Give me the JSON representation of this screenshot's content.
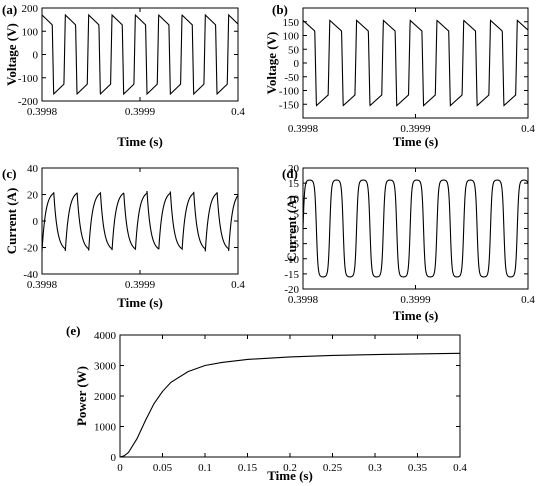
{
  "chart_data": [
    {
      "label": "(a)",
      "type": "line",
      "xlabel": "Time (s)",
      "ylabel": "Voltage (V)",
      "xlim": [
        0.3998,
        0.4
      ],
      "ylim": [
        -200,
        200
      ],
      "xticks": [
        0.3998,
        0.3999,
        0.4
      ],
      "xtick_labels": [
        "0.3998",
        "0.3999",
        "0.4"
      ],
      "yticks": [
        200,
        100,
        0,
        -100,
        -200
      ],
      "ytick_labels": [
        "200",
        "100",
        "0",
        "-100",
        "-200"
      ],
      "waveform": {
        "shape": "trapezoid-square",
        "amplitude": 170,
        "frequency_hz": 42000,
        "phase_start": "positive-falling"
      }
    },
    {
      "label": "(b)",
      "type": "line",
      "xlabel": "Time (s)",
      "ylabel": "Voltage (V)",
      "xlim": [
        0.3998,
        0.4
      ],
      "ylim": [
        -200,
        200
      ],
      "xticks": [
        0.3998,
        0.3999,
        0.4
      ],
      "xtick_labels": [
        "0.3998",
        "0.3999",
        "0.4"
      ],
      "yticks": [
        150,
        100,
        50,
        0,
        -50,
        -100,
        -150
      ],
      "ytick_labels": [
        "150",
        "100",
        "50",
        "0",
        "-50",
        "-100",
        "-150"
      ],
      "waveform": {
        "shape": "trapezoid-square",
        "amplitude": 155,
        "frequency_hz": 42000,
        "phase_start": "positive-falling"
      }
    },
    {
      "label": "(c)",
      "type": "line",
      "xlabel": "Time (s)",
      "ylabel": "Current (A)",
      "xlim": [
        0.3998,
        0.4
      ],
      "ylim": [
        -40,
        40
      ],
      "xticks": [
        0.3998,
        0.3999,
        0.4
      ],
      "xtick_labels": [
        "0.3998",
        "0.3999",
        "0.4"
      ],
      "yticks": [
        40,
        20,
        0,
        -20,
        -40
      ],
      "ytick_labels": [
        "40",
        "20",
        "0",
        "-20",
        "-40"
      ],
      "waveform": {
        "shape": "sawtooth-exponential",
        "amplitude": 21,
        "frequency_hz": 42000
      }
    },
    {
      "label": "(d)",
      "type": "line",
      "xlabel": "Time (s)",
      "ylabel": "Current (A)",
      "xlim": [
        0.3998,
        0.4
      ],
      "ylim": [
        -20,
        20
      ],
      "xticks": [
        0.3998,
        0.3999,
        0.4
      ],
      "xtick_labels": [
        "0.3998",
        "0.3999",
        "0.4"
      ],
      "yticks": [
        20,
        15,
        10,
        5,
        0,
        -5,
        -10,
        -15,
        -20
      ],
      "ytick_labels": [
        "20",
        "15",
        "10",
        "5",
        "0",
        "-5",
        "-10",
        "-15",
        "-20"
      ],
      "waveform": {
        "shape": "rounded-square",
        "amplitude": 16,
        "frequency_hz": 42000
      }
    },
    {
      "label": "(e)",
      "type": "line",
      "xlabel": "Time (s)",
      "ylabel": "Power (W)",
      "xlim": [
        0,
        0.4
      ],
      "ylim": [
        0,
        4000
      ],
      "xticks": [
        0,
        0.05,
        0.1,
        0.15,
        0.2,
        0.25,
        0.3,
        0.35,
        0.4
      ],
      "xtick_labels": [
        "0",
        "0.05",
        "0.1",
        "0.15",
        "0.2",
        "0.25",
        "0.3",
        "0.35",
        "0.4"
      ],
      "yticks": [
        4000,
        3000,
        2000,
        1000,
        0
      ],
      "ytick_labels": [
        "4000",
        "3000",
        "2000",
        "1000",
        "0"
      ],
      "x": [
        0,
        0.005,
        0.01,
        0.02,
        0.03,
        0.04,
        0.05,
        0.06,
        0.08,
        0.1,
        0.12,
        0.15,
        0.2,
        0.25,
        0.3,
        0.35,
        0.4
      ],
      "y": [
        0,
        40,
        150,
        600,
        1200,
        1750,
        2150,
        2450,
        2800,
        3000,
        3100,
        3200,
        3280,
        3330,
        3360,
        3380,
        3400
      ]
    }
  ]
}
